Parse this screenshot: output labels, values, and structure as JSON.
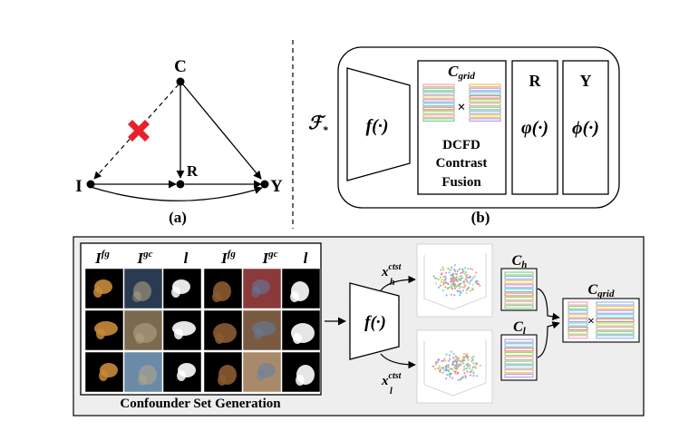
{
  "panel_a": {
    "nodes": {
      "c": "C",
      "r": "R",
      "i": "I",
      "y": "Y"
    },
    "caption": "(a)"
  },
  "panel_b": {
    "operator": "ℱ",
    "operator_sub": "*",
    "encoder_label": "f(·)",
    "grid_title": "C",
    "grid_title_sub": "grid",
    "cross": "×",
    "dcfd_line1": "DCFD",
    "dcfd_line2": "Contrast",
    "dcfd_line3": "Fusion",
    "r_title": "R",
    "r_func": "φ(·)",
    "y_title": "Y",
    "y_func": "ϕ(·)",
    "caption": "(b)"
  },
  "panel_c": {
    "col_headers": [
      {
        "base": "I",
        "sup": "fg"
      },
      {
        "base": "I",
        "sup": "gc"
      },
      {
        "base": "l",
        "sup": ""
      },
      {
        "base": "I",
        "sup": "fg"
      },
      {
        "base": "I",
        "sup": "gc"
      },
      {
        "base": "l",
        "sup": ""
      }
    ],
    "set_caption": "Confounder Set Generation",
    "encoder_label": "f(·)",
    "xh": {
      "base": "x",
      "sup": "ctst",
      "sub": "h"
    },
    "xl": {
      "base": "x",
      "sup": "ctst",
      "sub": "l"
    },
    "ch": {
      "base": "C",
      "sub": "h"
    },
    "cl": {
      "base": "C",
      "sub": "l"
    },
    "cgrid": {
      "base": "C",
      "sub": "grid"
    },
    "cross": "×"
  },
  "colors": {
    "cross_mark": "#e8202a",
    "panel_fill": "#eeeeee",
    "stripes": [
      "#f4a6b0",
      "#7fd37f",
      "#9ab8f0",
      "#f0c060",
      "#b8a0e8",
      "#6fd0d8",
      "#f08080",
      "#a0d870"
    ]
  }
}
